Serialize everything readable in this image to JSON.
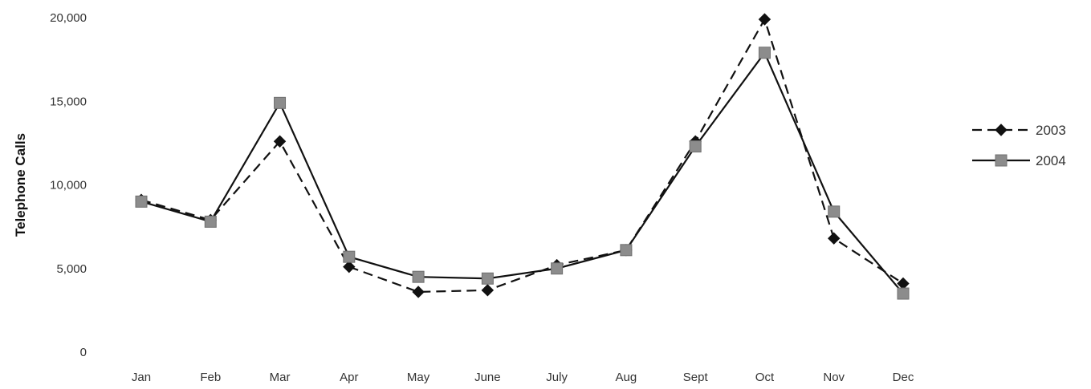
{
  "chart_data": {
    "type": "line",
    "title": "",
    "xlabel": "",
    "ylabel": "Telephone Calls",
    "categories": [
      "Jan",
      "Feb",
      "Mar",
      "Apr",
      "May",
      "June",
      "July",
      "Aug",
      "Sept",
      "Oct",
      "Nov",
      "Dec"
    ],
    "ylim": [
      0,
      20000
    ],
    "yticks": [
      "0",
      "5,000",
      "10,000",
      "15,000",
      "20,000"
    ],
    "yticks_values": [
      0,
      5000,
      10000,
      15000,
      20000
    ],
    "grid": false,
    "legend_position": "right",
    "series": [
      {
        "name": "2003",
        "line_style": "dashed",
        "marker": "diamond",
        "color": "#111111",
        "marker_color": "#111111",
        "values": [
          9100,
          7900,
          12600,
          5100,
          3600,
          3700,
          5200,
          6100,
          12600,
          19900,
          6800,
          4100
        ]
      },
      {
        "name": "2004",
        "line_style": "solid",
        "marker": "square",
        "color": "#111111",
        "marker_color": "#8c8c8c",
        "values": [
          9000,
          7800,
          14900,
          5700,
          4500,
          4400,
          5000,
          6100,
          12300,
          17900,
          8400,
          3500
        ]
      }
    ]
  }
}
